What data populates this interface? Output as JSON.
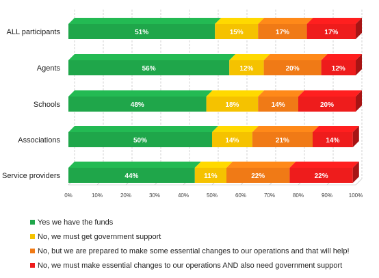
{
  "chart_data": {
    "type": "bar",
    "orientation": "horizontal",
    "stacked": true,
    "categories": [
      "ALL participants",
      "Agents",
      "Schools",
      "Associations",
      "Service providers"
    ],
    "series": [
      {
        "name": "Yes we have the funds",
        "color": "#1fa64a",
        "values": [
          51,
          56,
          48,
          50,
          44
        ],
        "labels": [
          "51%",
          "56%",
          "48%",
          "50%",
          "44%"
        ]
      },
      {
        "name": "No, we must get government support",
        "color": "#f5c200",
        "values": [
          15,
          12,
          18,
          14,
          11
        ],
        "labels": [
          "15%",
          "12%",
          "18%",
          "14%",
          "11%"
        ]
      },
      {
        "name": "No, but we are prepared to make some essential changes to our operations and that will help!",
        "color": "#f07a16",
        "values": [
          17,
          20,
          14,
          21,
          22
        ],
        "labels": [
          "17%",
          "20%",
          "14%",
          "21%",
          "22%"
        ]
      },
      {
        "name": "No, we must make essential changes to our operations AND also need government support",
        "color": "#ee1c1c",
        "values": [
          17,
          12,
          20,
          14,
          22
        ],
        "labels": [
          "17%",
          "12%",
          "20%",
          "14%",
          "22%"
        ]
      }
    ],
    "xlim": [
      0,
      100
    ],
    "ticks": [
      "0%",
      "10%",
      "20%",
      "30%",
      "40%",
      "50%",
      "60%",
      "70%",
      "80%",
      "90%",
      "100%"
    ],
    "grid": true,
    "legend_position": "bottom",
    "title": "",
    "xlabel": "",
    "ylabel": ""
  }
}
